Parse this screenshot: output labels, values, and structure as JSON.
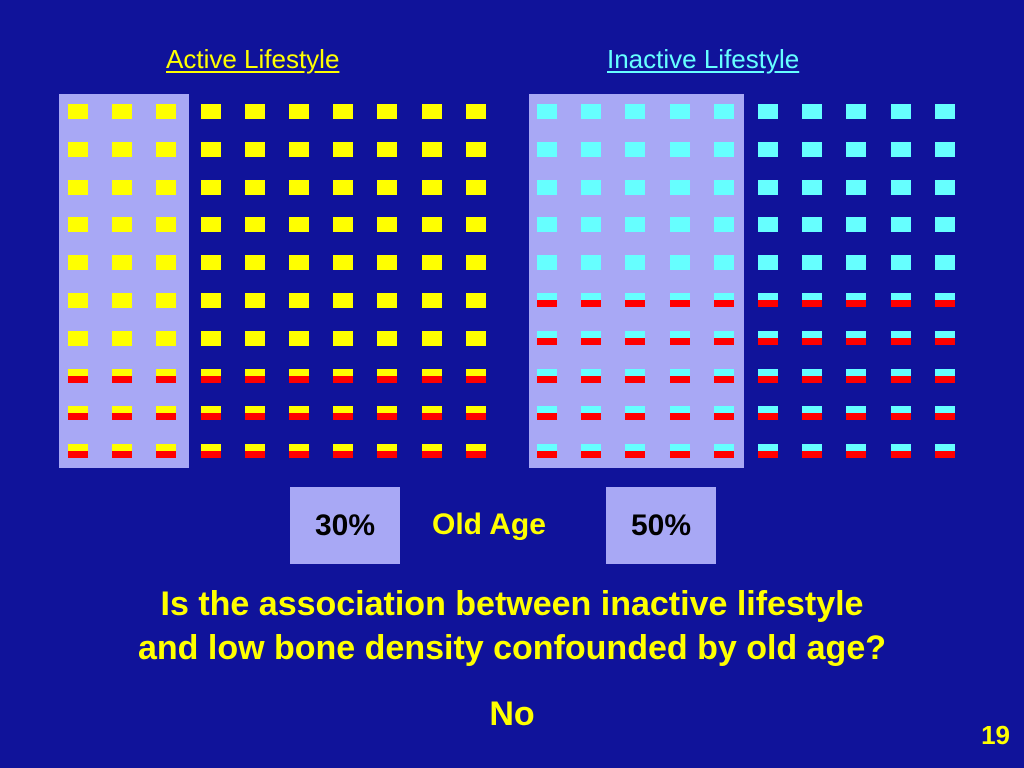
{
  "headings": {
    "active": "Active Lifestyle",
    "inactive": "Inactive Lifestyle"
  },
  "boxes": {
    "active_percent": "30%",
    "label": "Old Age",
    "inactive_percent": "50%"
  },
  "question": {
    "line1": "Is the association between inactive lifestyle",
    "line2": "and low bone density confounded by old age?"
  },
  "answer": "No",
  "page_number": "19",
  "colors": {
    "background": "#10139a",
    "panel": "#a8a8f5",
    "active_marker": "#ffff00",
    "inactive_marker": "#66ffff",
    "low_bone_density": "#ff0000",
    "text": "#ffff00"
  },
  "groups": {
    "active": {
      "columns": 10,
      "rows": 10,
      "old_age_columns": 3,
      "low_density_rows_from_bottom": 3
    },
    "inactive": {
      "columns": 10,
      "rows": 10,
      "old_age_columns": 5,
      "low_density_rows_from_bottom": 5
    }
  }
}
